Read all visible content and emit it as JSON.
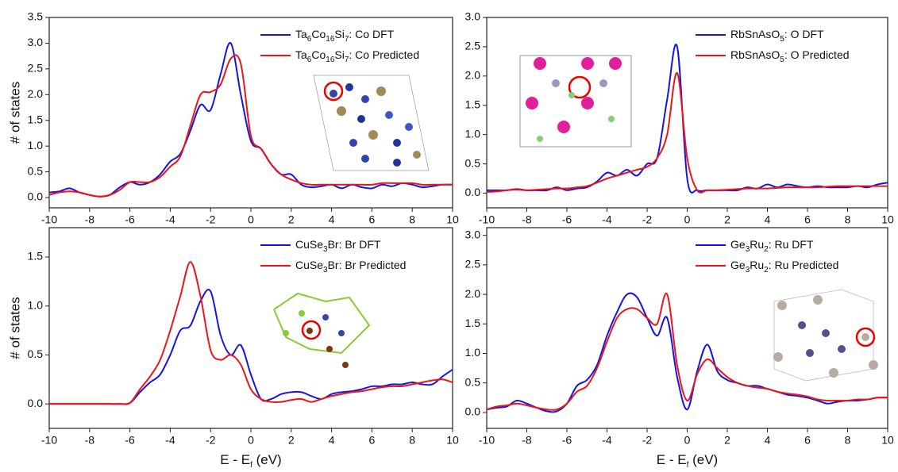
{
  "chart_data": [
    {
      "type": "line",
      "ylabel": "# of states",
      "x": [
        -10,
        -9.5,
        -9,
        -8.5,
        -8,
        -7.5,
        -7,
        -6.5,
        -6,
        -5.5,
        -5,
        -4.5,
        -4,
        -3.5,
        -3,
        -2.5,
        -2,
        -1.5,
        -1,
        -0.5,
        0,
        0.5,
        1,
        1.5,
        2,
        2.5,
        3,
        3.5,
        4,
        4.5,
        5,
        5.5,
        6,
        6.5,
        7,
        7.5,
        8,
        8.5,
        9,
        9.5,
        10
      ],
      "xlim": [
        -10,
        10
      ],
      "xticks": [
        -10,
        -8,
        -6,
        -4,
        -2,
        0,
        2,
        4,
        6,
        8,
        10
      ],
      "ylim": [
        -0.2,
        3.5
      ],
      "yticks": [
        {
          "value": 0,
          "label": "0.0"
        },
        0.5,
        {
          "value": 1,
          "label": "1.0"
        },
        1.5,
        {
          "value": 2,
          "label": "2.0"
        },
        2.5,
        {
          "value": 3,
          "label": "3.0"
        },
        3.5
      ],
      "legend": "upper right",
      "series": [
        {
          "name": "Ta6Co16Si7: Co DFT",
          "color": "#1414e6",
          "values": [
            0.1,
            0.12,
            0.18,
            0.1,
            0.05,
            0.02,
            0.05,
            0.2,
            0.3,
            0.25,
            0.3,
            0.45,
            0.7,
            0.85,
            1.3,
            1.8,
            1.7,
            2.4,
            3.0,
            2.0,
            1.1,
            0.95,
            0.65,
            0.45,
            0.45,
            0.25,
            0.2,
            0.22,
            0.25,
            0.18,
            0.25,
            0.2,
            0.18,
            0.25,
            0.22,
            0.28,
            0.25,
            0.2,
            0.22,
            0.25,
            0.25
          ]
        },
        {
          "name": "Ta6Co16Si7: Co Predicted",
          "color": "#ee1414",
          "values": [
            0.05,
            0.1,
            0.12,
            0.1,
            0.05,
            0.02,
            0.05,
            0.15,
            0.3,
            0.3,
            0.3,
            0.4,
            0.6,
            0.8,
            1.4,
            2.0,
            2.05,
            2.2,
            2.7,
            2.6,
            1.2,
            0.95,
            0.65,
            0.45,
            0.35,
            0.28,
            0.25,
            0.25,
            0.25,
            0.25,
            0.25,
            0.25,
            0.25,
            0.28,
            0.28,
            0.28,
            0.28,
            0.25,
            0.25,
            0.25,
            0.25
          ]
        }
      ]
    },
    {
      "type": "line",
      "x": [
        -10,
        -9.5,
        -9,
        -8.5,
        -8,
        -7.5,
        -7,
        -6.5,
        -6,
        -5.5,
        -5,
        -4.5,
        -4,
        -3.5,
        -3,
        -2.5,
        -2,
        -1.5,
        -1,
        -0.5,
        0,
        0.5,
        1,
        1.5,
        2,
        2.5,
        3,
        3.5,
        4,
        4.5,
        5,
        5.5,
        6,
        6.5,
        7,
        7.5,
        8,
        8.5,
        9,
        9.5,
        10
      ],
      "xlim": [
        -10,
        10
      ],
      "xticks": [
        -10,
        -8,
        -6,
        -4,
        -2,
        0,
        2,
        4,
        6,
        8,
        10
      ],
      "ylim": [
        -0.25,
        3.0
      ],
      "yticks": [
        {
          "value": 0,
          "label": "0.0"
        },
        0.5,
        {
          "value": 1,
          "label": "1.0"
        },
        1.5,
        {
          "value": 2,
          "label": "2.0"
        },
        2.5,
        {
          "value": 3,
          "label": "3.0"
        }
      ],
      "legend": "upper right",
      "series": [
        {
          "name": "RbSnAsO5: O DFT",
          "color": "#1414e6",
          "values": [
            0.05,
            0.05,
            0.05,
            0.07,
            0.05,
            0.05,
            0.05,
            0.1,
            0.05,
            0.08,
            0.1,
            0.2,
            0.35,
            0.3,
            0.4,
            0.3,
            0.5,
            0.6,
            1.6,
            2.5,
            0.25,
            0.05,
            0.05,
            0.05,
            0.05,
            0.05,
            0.1,
            0.08,
            0.15,
            0.1,
            0.15,
            0.12,
            0.1,
            0.12,
            0.1,
            0.1,
            0.1,
            0.12,
            0.1,
            0.15,
            0.18
          ]
        },
        {
          "name": "RbSnAsO5: O Predicted",
          "color": "#ee1414",
          "values": [
            0.02,
            0.03,
            0.05,
            0.06,
            0.05,
            0.06,
            0.07,
            0.08,
            0.08,
            0.1,
            0.12,
            0.18,
            0.25,
            0.3,
            0.35,
            0.4,
            0.45,
            0.6,
            1.0,
            2.05,
            0.6,
            0.05,
            0.05,
            0.05,
            0.06,
            0.07,
            0.08,
            0.08,
            0.08,
            0.09,
            0.1,
            0.1,
            0.1,
            0.1,
            0.11,
            0.12,
            0.12,
            0.12,
            0.12,
            0.12,
            0.12
          ]
        }
      ]
    },
    {
      "type": "line",
      "ylabel": "# of states",
      "xlabel": "E - Ef (eV)",
      "x": [
        -10,
        -9.5,
        -9,
        -8.5,
        -8,
        -7.5,
        -7,
        -6.5,
        -6,
        -5.5,
        -5,
        -4.5,
        -4,
        -3.5,
        -3,
        -2.5,
        -2,
        -1.5,
        -1,
        -0.5,
        0,
        0.5,
        1,
        1.5,
        2,
        2.5,
        3,
        3.5,
        4,
        4.5,
        5,
        5.5,
        6,
        6.5,
        7,
        7.5,
        8,
        8.5,
        9,
        9.5,
        10
      ],
      "xlim": [
        -10,
        10
      ],
      "xticks": [
        -10,
        -8,
        -6,
        -4,
        -2,
        0,
        2,
        4,
        6,
        8,
        10
      ],
      "ylim": [
        -0.25,
        1.8
      ],
      "yticks": [
        {
          "value": 0,
          "label": "0.0"
        },
        0.5,
        {
          "value": 1,
          "label": "1.0"
        },
        1.5
      ],
      "legend": "upper right",
      "series": [
        {
          "name": "CuSe3Br: Br DFT",
          "color": "#1414e6",
          "values": [
            0,
            0,
            0,
            0,
            0,
            0,
            0,
            0,
            0.01,
            0.12,
            0.22,
            0.3,
            0.5,
            0.75,
            0.8,
            1.05,
            1.15,
            0.7,
            0.5,
            0.6,
            0.3,
            0.05,
            0.05,
            0.1,
            0.12,
            0.12,
            0.08,
            0.05,
            0.1,
            0.12,
            0.13,
            0.15,
            0.18,
            0.18,
            0.2,
            0.2,
            0.22,
            0.2,
            0.2,
            0.28,
            0.35
          ]
        },
        {
          "name": "CuSe3Br: Br Predicted",
          "color": "#ee1414",
          "values": [
            0,
            0,
            0,
            0,
            0,
            0,
            0,
            0,
            0.01,
            0.15,
            0.28,
            0.45,
            0.75,
            1.1,
            1.45,
            1.1,
            0.55,
            0.45,
            0.5,
            0.4,
            0.15,
            0.05,
            0.02,
            0.02,
            0.04,
            0.05,
            0.02,
            0.05,
            0.08,
            0.1,
            0.12,
            0.13,
            0.15,
            0.17,
            0.18,
            0.18,
            0.2,
            0.22,
            0.24,
            0.25,
            0.22
          ]
        }
      ]
    },
    {
      "type": "line",
      "xlabel": "E - Ef (eV)",
      "x": [
        -10,
        -9.5,
        -9,
        -8.5,
        -8,
        -7.5,
        -7,
        -6.5,
        -6,
        -5.5,
        -5,
        -4.5,
        -4,
        -3.5,
        -3,
        -2.5,
        -2,
        -1.5,
        -1,
        -0.5,
        0,
        0.5,
        1,
        1.5,
        2,
        2.5,
        3,
        3.5,
        4,
        4.5,
        5,
        5.5,
        6,
        6.5,
        7,
        7.5,
        8,
        8.5,
        9,
        9.5,
        10
      ],
      "xlim": [
        -10,
        10
      ],
      "xticks": [
        -10,
        -8,
        -6,
        -4,
        -2,
        0,
        2,
        4,
        6,
        8,
        10
      ],
      "ylim": [
        -0.27,
        3.13
      ],
      "yticks": [
        {
          "value": 0,
          "label": "0.0"
        },
        0.5,
        {
          "value": 1,
          "label": "1.0"
        },
        1.5,
        {
          "value": 2,
          "label": "2.0"
        },
        2.5,
        {
          "value": 3,
          "label": "3.0"
        }
      ],
      "legend": "upper right",
      "series": [
        {
          "name": "Ge3Ru2: Ru DFT",
          "color": "#1414e6",
          "values": [
            0.05,
            0.08,
            0.1,
            0.2,
            0.15,
            0.08,
            0.02,
            0.02,
            0.15,
            0.45,
            0.55,
            0.8,
            1.3,
            1.7,
            2.0,
            1.95,
            1.6,
            1.3,
            1.6,
            0.6,
            0.05,
            0.7,
            1.15,
            0.7,
            0.55,
            0.5,
            0.45,
            0.45,
            0.4,
            0.35,
            0.3,
            0.28,
            0.25,
            0.2,
            0.15,
            0.18,
            0.2,
            0.2,
            0.22,
            0.25,
            0.25
          ]
        },
        {
          "name": "Ge3Ru2: Ru Predicted",
          "color": "#ee1414",
          "values": [
            0.05,
            0.1,
            0.12,
            0.15,
            0.12,
            0.08,
            0.05,
            0.05,
            0.15,
            0.35,
            0.45,
            0.75,
            1.2,
            1.6,
            1.75,
            1.75,
            1.6,
            1.5,
            2.0,
            0.8,
            0.2,
            0.65,
            0.9,
            0.75,
            0.6,
            0.5,
            0.45,
            0.42,
            0.4,
            0.35,
            0.32,
            0.3,
            0.27,
            0.22,
            0.2,
            0.2,
            0.2,
            0.22,
            0.22,
            0.25,
            0.25
          ]
        }
      ]
    }
  ]
}
